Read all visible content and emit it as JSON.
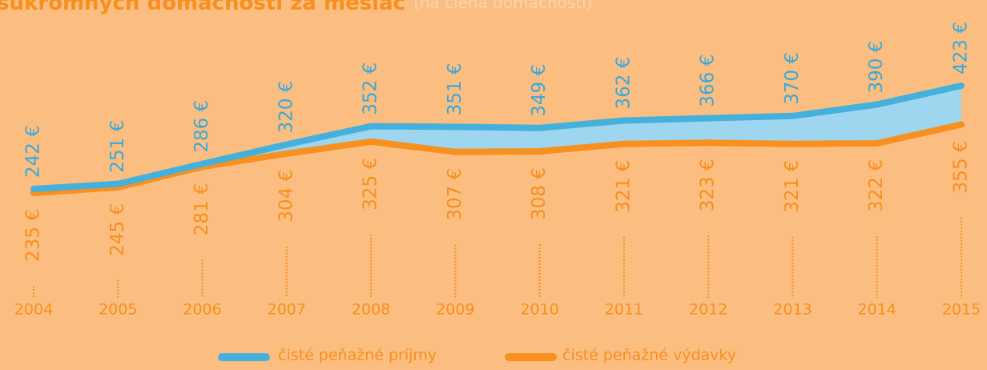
{
  "chart_data": {
    "type": "line",
    "title": "súkromných domácností za mesiac",
    "subtitle": "(na člena domácnosti)",
    "categories": [
      "2004",
      "2005",
      "2006",
      "2007",
      "2008",
      "2009",
      "2010",
      "2011",
      "2012",
      "2013",
      "2014",
      "2015"
    ],
    "fill_between": "#9dd6ee",
    "series": [
      {
        "name": "čisté peňažné príjmy",
        "color": "#46b0dc",
        "label_color": "#3aa9d9",
        "values": [
          242,
          251,
          286,
          320,
          352,
          351,
          349,
          362,
          366,
          370,
          390,
          423
        ],
        "value_labels": [
          "242 €",
          "251 €",
          "286 €",
          "320 €",
          "352 €",
          "351 €",
          "349 €",
          "362 €",
          "366 €",
          "370 €",
          "390 €",
          "423 €"
        ]
      },
      {
        "name": "čisté peňažné výdavky",
        "color": "#f7901e",
        "label_color": "#f7901e",
        "values": [
          235,
          245,
          281,
          304,
          325,
          307,
          308,
          321,
          323,
          321,
          322,
          355
        ],
        "value_labels": [
          "235 €",
          "245 €",
          "281 €",
          "304 €",
          "325 €",
          "307 €",
          "308 €",
          "321 €",
          "323 €",
          "321 €",
          "322 €",
          "355 €"
        ]
      }
    ]
  }
}
